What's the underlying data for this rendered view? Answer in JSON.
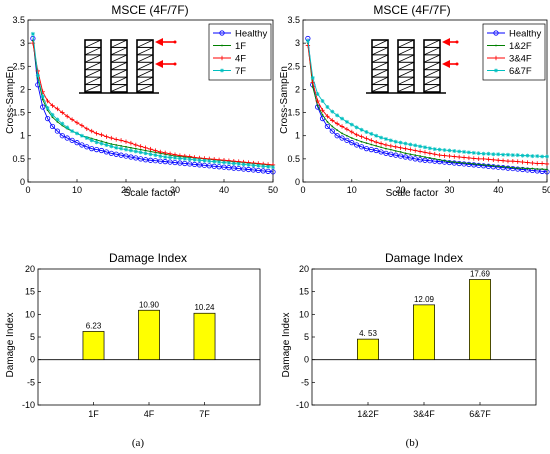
{
  "chart_data": [
    {
      "type": "line",
      "title": "MSCE (4F/7F)",
      "xlabel": "Scale factor",
      "ylabel": "Cross-SampEn",
      "xlim": [
        0,
        50
      ],
      "ylim": [
        0,
        3.5
      ],
      "xticks": [
        "0",
        "10",
        "20",
        "30",
        "40",
        "50"
      ],
      "yticks": [
        "0",
        "0.5",
        "1",
        "1.5",
        "2",
        "2.5",
        "3",
        "3.5"
      ],
      "legend_position": "top-right",
      "series": [
        {
          "name": "Healthy",
          "color": "#0000ff",
          "marker": "circle",
          "values": [
            3.1,
            2.1,
            1.62,
            1.37,
            1.2,
            1.1,
            1.0,
            0.95,
            0.9,
            0.85,
            0.8,
            0.76,
            0.72,
            0.7,
            0.68,
            0.65,
            0.62,
            0.6,
            0.58,
            0.56,
            0.54,
            0.52,
            0.5,
            0.48,
            0.47,
            0.46,
            0.45,
            0.44,
            0.43,
            0.42,
            0.41,
            0.4,
            0.39,
            0.38,
            0.37,
            0.36,
            0.35,
            0.34,
            0.33,
            0.32,
            0.31,
            0.3,
            0.29,
            0.28,
            0.27,
            0.26,
            0.25,
            0.24,
            0.23,
            0.22
          ]
        },
        {
          "name": "1F",
          "color": "#008000",
          "marker": "dot",
          "values": [
            3.05,
            2.25,
            1.78,
            1.55,
            1.4,
            1.3,
            1.22,
            1.15,
            1.1,
            1.05,
            1.0,
            0.97,
            0.94,
            0.91,
            0.88,
            0.85,
            0.82,
            0.8,
            0.78,
            0.76,
            0.74,
            0.72,
            0.7,
            0.68,
            0.66,
            0.64,
            0.62,
            0.6,
            0.58,
            0.56,
            0.55,
            0.54,
            0.53,
            0.52,
            0.51,
            0.5,
            0.49,
            0.48,
            0.47,
            0.46,
            0.45,
            0.44,
            0.43,
            0.42,
            0.41,
            0.4,
            0.39,
            0.38,
            0.37,
            0.36
          ]
        },
        {
          "name": "4F",
          "color": "#ff0000",
          "marker": "plus",
          "values": [
            3.0,
            2.4,
            1.95,
            1.75,
            1.65,
            1.58,
            1.5,
            1.42,
            1.35,
            1.28,
            1.22,
            1.15,
            1.1,
            1.05,
            1.02,
            0.98,
            0.95,
            0.92,
            0.9,
            0.87,
            0.84,
            0.8,
            0.77,
            0.74,
            0.71,
            0.68,
            0.65,
            0.63,
            0.61,
            0.59,
            0.57,
            0.56,
            0.55,
            0.53,
            0.52,
            0.51,
            0.5,
            0.49,
            0.48,
            0.47,
            0.46,
            0.45,
            0.44,
            0.43,
            0.42,
            0.41,
            0.4,
            0.39,
            0.38,
            0.37
          ]
        },
        {
          "name": "7F",
          "color": "#00bfbf",
          "marker": "star",
          "values": [
            3.2,
            2.3,
            1.85,
            1.6,
            1.45,
            1.35,
            1.26,
            1.18,
            1.1,
            1.05,
            1.0,
            0.95,
            0.9,
            0.86,
            0.83,
            0.8,
            0.77,
            0.74,
            0.72,
            0.7,
            0.68,
            0.66,
            0.64,
            0.62,
            0.6,
            0.58,
            0.56,
            0.54,
            0.53,
            0.52,
            0.51,
            0.5,
            0.49,
            0.48,
            0.47,
            0.46,
            0.45,
            0.44,
            0.43,
            0.42,
            0.41,
            0.4,
            0.39,
            0.38,
            0.37,
            0.36,
            0.35,
            0.34,
            0.33,
            0.32
          ]
        }
      ]
    },
    {
      "type": "line",
      "title": "MSCE (4F/7F)",
      "xlabel": "Scale factor",
      "ylabel": "Cross-SampEn",
      "xlim": [
        0,
        50
      ],
      "ylim": [
        0,
        3.5
      ],
      "xticks": [
        "0",
        "10",
        "20",
        "30",
        "40",
        "50"
      ],
      "yticks": [
        "0",
        "0.5",
        "1",
        "1.5",
        "2",
        "2.5",
        "3",
        "3.5"
      ],
      "legend_position": "top-right",
      "series": [
        {
          "name": "Healthy",
          "color": "#0000ff",
          "marker": "circle",
          "values": [
            3.1,
            2.1,
            1.62,
            1.37,
            1.2,
            1.1,
            1.0,
            0.95,
            0.9,
            0.85,
            0.8,
            0.76,
            0.72,
            0.7,
            0.68,
            0.65,
            0.62,
            0.6,
            0.58,
            0.56,
            0.54,
            0.52,
            0.5,
            0.48,
            0.47,
            0.46,
            0.45,
            0.44,
            0.43,
            0.42,
            0.41,
            0.4,
            0.39,
            0.38,
            0.37,
            0.36,
            0.35,
            0.34,
            0.33,
            0.32,
            0.31,
            0.3,
            0.29,
            0.28,
            0.27,
            0.26,
            0.25,
            0.24,
            0.23,
            0.22
          ]
        },
        {
          "name": "1&2F",
          "color": "#008000",
          "marker": "dot",
          "values": [
            3.0,
            2.05,
            1.65,
            1.45,
            1.3,
            1.2,
            1.12,
            1.05,
            1.0,
            0.95,
            0.91,
            0.87,
            0.84,
            0.81,
            0.78,
            0.75,
            0.72,
            0.7,
            0.67,
            0.65,
            0.62,
            0.6,
            0.58,
            0.56,
            0.54,
            0.52,
            0.5,
            0.48,
            0.46,
            0.44,
            0.43,
            0.42,
            0.41,
            0.4,
            0.39,
            0.38,
            0.37,
            0.36,
            0.35,
            0.34,
            0.33,
            0.32,
            0.31,
            0.3,
            0.3,
            0.29,
            0.29,
            0.28,
            0.28,
            0.27
          ]
        },
        {
          "name": "3&4F",
          "color": "#ff0000",
          "marker": "plus",
          "values": [
            2.95,
            2.15,
            1.75,
            1.55,
            1.42,
            1.33,
            1.26,
            1.2,
            1.14,
            1.08,
            1.02,
            0.98,
            0.94,
            0.9,
            0.86,
            0.83,
            0.8,
            0.78,
            0.76,
            0.74,
            0.72,
            0.7,
            0.68,
            0.66,
            0.64,
            0.62,
            0.6,
            0.58,
            0.57,
            0.56,
            0.55,
            0.54,
            0.53,
            0.52,
            0.51,
            0.5,
            0.5,
            0.49,
            0.48,
            0.47,
            0.46,
            0.45,
            0.45,
            0.44,
            0.43,
            0.42,
            0.41,
            0.4,
            0.4,
            0.39
          ]
        },
        {
          "name": "6&7F",
          "color": "#00bfbf",
          "marker": "star",
          "values": [
            3.05,
            2.25,
            1.9,
            1.75,
            1.62,
            1.52,
            1.44,
            1.37,
            1.3,
            1.24,
            1.18,
            1.13,
            1.08,
            1.04,
            1.0,
            0.96,
            0.93,
            0.9,
            0.87,
            0.85,
            0.83,
            0.81,
            0.79,
            0.77,
            0.75,
            0.73,
            0.71,
            0.7,
            0.69,
            0.68,
            0.67,
            0.66,
            0.65,
            0.64,
            0.63,
            0.62,
            0.61,
            0.61,
            0.6,
            0.6,
            0.59,
            0.59,
            0.58,
            0.58,
            0.57,
            0.57,
            0.56,
            0.56,
            0.55,
            0.55
          ]
        }
      ]
    },
    {
      "type": "bar",
      "title": "Damage Index",
      "xlabel": "",
      "ylabel": "Damage Index",
      "categories": [
        "1F",
        "4F",
        "7F"
      ],
      "values": [
        6.23,
        10.9,
        10.24
      ],
      "data_labels": [
        "6.23",
        "10.90",
        "10.24"
      ],
      "ylim": [
        -10,
        20
      ],
      "yticks": [
        "-10",
        "-5",
        "0",
        "5",
        "10",
        "15",
        "20"
      ],
      "bar_color": "#ffff00"
    },
    {
      "type": "bar",
      "title": "Damage Index",
      "xlabel": "",
      "ylabel": "Damage Index",
      "categories": [
        "1&2F",
        "3&4F",
        "6&7F"
      ],
      "values": [
        4.53,
        12.09,
        17.69
      ],
      "data_labels": [
        "4. 53",
        "12.09",
        "17.69"
      ],
      "ylim": [
        -10,
        20
      ],
      "yticks": [
        "-10",
        "-5",
        "0",
        "5",
        "10",
        "15",
        "20"
      ],
      "bar_color": "#ffff00"
    }
  ],
  "captions": [
    "(a)",
    "(b)"
  ]
}
